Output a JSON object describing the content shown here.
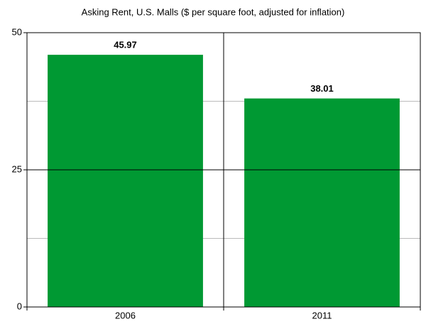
{
  "chart_data": {
    "type": "bar",
    "title": "Asking Rent, U.S. Malls ($ per square foot, adjusted for inflation)",
    "categories": [
      "2006",
      "2011"
    ],
    "values": [
      45.97,
      38.01
    ],
    "color": "#009933",
    "ylim": [
      0,
      50
    ],
    "yticks": [
      0,
      25,
      50
    ],
    "minor_yticks": [
      12.5,
      37.5
    ],
    "grid": true
  }
}
